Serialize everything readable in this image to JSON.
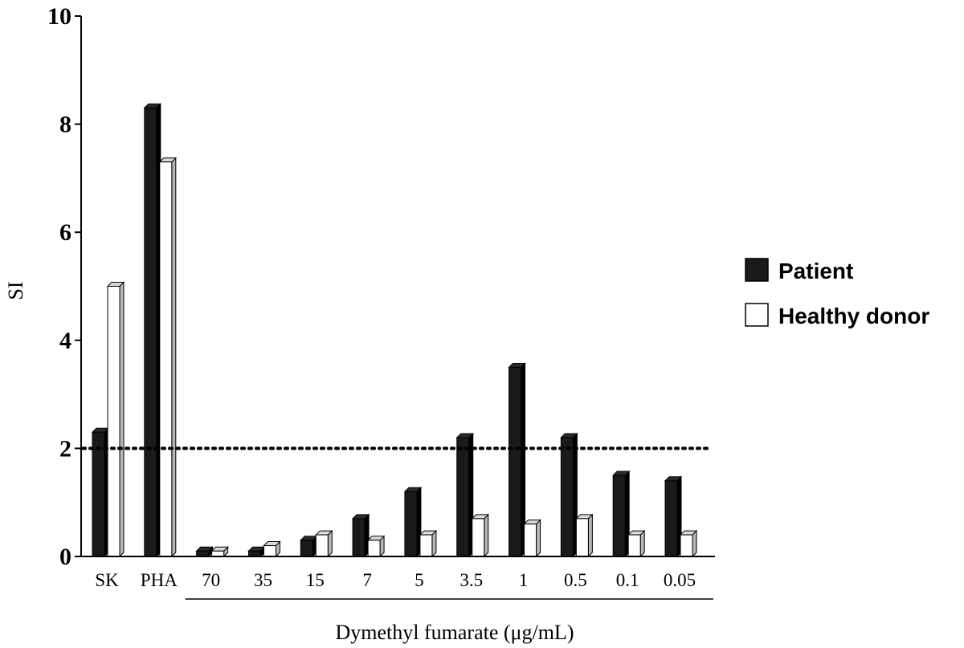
{
  "chart_data": {
    "type": "bar",
    "categories": [
      "SK",
      "PHA",
      "70",
      "35",
      "15",
      "7",
      "5",
      "3.5",
      "1",
      "0.5",
      "0.1",
      "0.05"
    ],
    "series": [
      {
        "name": "Patient",
        "values": [
          2.3,
          8.3,
          0.1,
          0.1,
          0.3,
          0.7,
          1.2,
          2.2,
          3.5,
          2.2,
          1.5,
          1.4
        ],
        "color": "#1a1a1a"
      },
      {
        "name": "Healthy donor",
        "values": [
          5.0,
          7.3,
          0.1,
          0.2,
          0.4,
          0.3,
          0.4,
          0.7,
          0.6,
          0.7,
          0.4,
          0.4
        ],
        "color": "#ffffff"
      }
    ],
    "ylabel": "SI",
    "xlabel": "Dymethyl fumarate (μg/mL)",
    "xlabel_group_categories": [
      "70",
      "35",
      "15",
      "7",
      "5",
      "3.5",
      "1",
      "0.5",
      "0.1",
      "0.05"
    ],
    "ylim": [
      0,
      10
    ],
    "yticks": [
      0,
      2,
      4,
      6,
      8,
      10
    ],
    "threshold": {
      "value": 2,
      "style": "dotted"
    },
    "legend_position": "right",
    "grid": false
  }
}
